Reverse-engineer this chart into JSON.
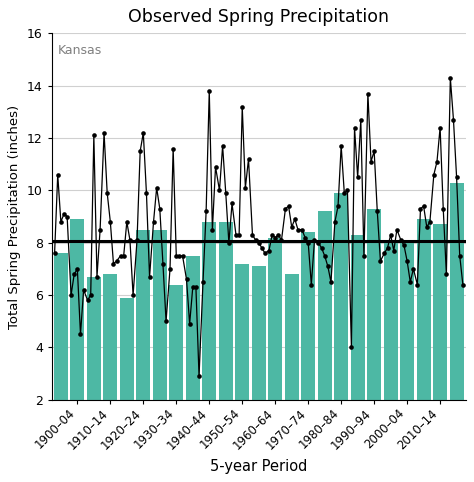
{
  "title": "Observed Spring Precipitation",
  "xlabel": "5-year Period",
  "ylabel": "Total Spring Precipitation (inches)",
  "state_label": "Kansas",
  "ylim": [
    2,
    16
  ],
  "yticks": [
    2,
    4,
    6,
    8,
    10,
    12,
    14,
    16
  ],
  "reference_line_y": 8.07,
  "bar_color": "#4db8a4",
  "line_color": "#111111",
  "background_color": "#ffffff",
  "periods_start": [
    1895,
    1900,
    1905,
    1910,
    1915,
    1920,
    1925,
    1930,
    1935,
    1940,
    1945,
    1950,
    1955,
    1960,
    1965,
    1970,
    1975,
    1980,
    1985,
    1990,
    1995,
    2000,
    2005,
    2010,
    2015
  ],
  "tick_label_years": [
    1900,
    1910,
    1920,
    1930,
    1940,
    1950,
    1960,
    1970,
    1980,
    1990,
    2000,
    2010
  ],
  "yearly_values": [
    [
      7.6,
      10.6,
      8.8,
      9.1,
      9.0
    ],
    [
      6.0,
      6.8,
      7.0,
      4.5,
      6.2
    ],
    [
      5.8,
      6.0,
      12.1,
      6.7,
      8.5
    ],
    [
      12.2,
      9.9,
      8.8,
      7.2,
      7.3
    ],
    [
      7.5,
      7.5,
      8.8,
      8.1,
      6.0
    ],
    [
      8.1,
      11.5,
      12.2,
      9.9,
      6.7
    ],
    [
      8.8,
      10.1,
      9.3,
      7.2,
      5.0
    ],
    [
      7.0,
      11.6,
      7.5,
      7.5,
      7.5
    ],
    [
      6.6,
      4.9,
      6.3,
      6.3,
      2.9
    ],
    [
      6.5,
      9.2,
      13.8,
      8.5,
      10.9
    ],
    [
      10.0,
      11.7,
      9.9,
      8.0,
      9.5
    ],
    [
      8.3,
      8.3,
      13.2,
      10.1,
      11.2
    ],
    [
      8.3,
      8.1,
      8.0,
      7.8,
      7.6
    ],
    [
      7.7,
      8.3,
      8.2,
      8.3,
      8.1
    ],
    [
      9.3,
      9.4,
      8.6,
      8.9,
      8.5
    ],
    [
      8.5,
      8.2,
      8.0,
      6.4,
      8.1
    ],
    [
      8.0,
      7.8,
      7.5,
      7.1,
      6.5
    ],
    [
      8.8,
      9.4,
      11.7,
      9.9,
      10.0
    ],
    [
      4.0,
      12.4,
      10.5,
      12.7,
      7.5
    ],
    [
      13.7,
      11.1,
      11.5,
      9.2,
      7.3
    ],
    [
      7.6,
      7.8,
      8.3,
      7.7,
      8.5
    ],
    [
      8.1,
      7.9,
      7.3,
      6.5,
      7.0
    ],
    [
      6.4,
      9.3,
      9.4,
      8.6,
      8.8
    ],
    [
      10.6,
      11.1,
      12.4,
      9.3,
      6.8
    ],
    [
      14.3,
      12.7,
      10.5,
      7.5,
      6.4
    ]
  ],
  "bar_heights": [
    7.6,
    8.9,
    6.7,
    6.8,
    5.9,
    8.5,
    8.5,
    6.4,
    7.5,
    8.8,
    8.8,
    7.2,
    7.1,
    8.2,
    6.8,
    8.4,
    9.2,
    9.9,
    8.3,
    9.3,
    8.1,
    8.1,
    8.9,
    8.7,
    10.3
  ]
}
